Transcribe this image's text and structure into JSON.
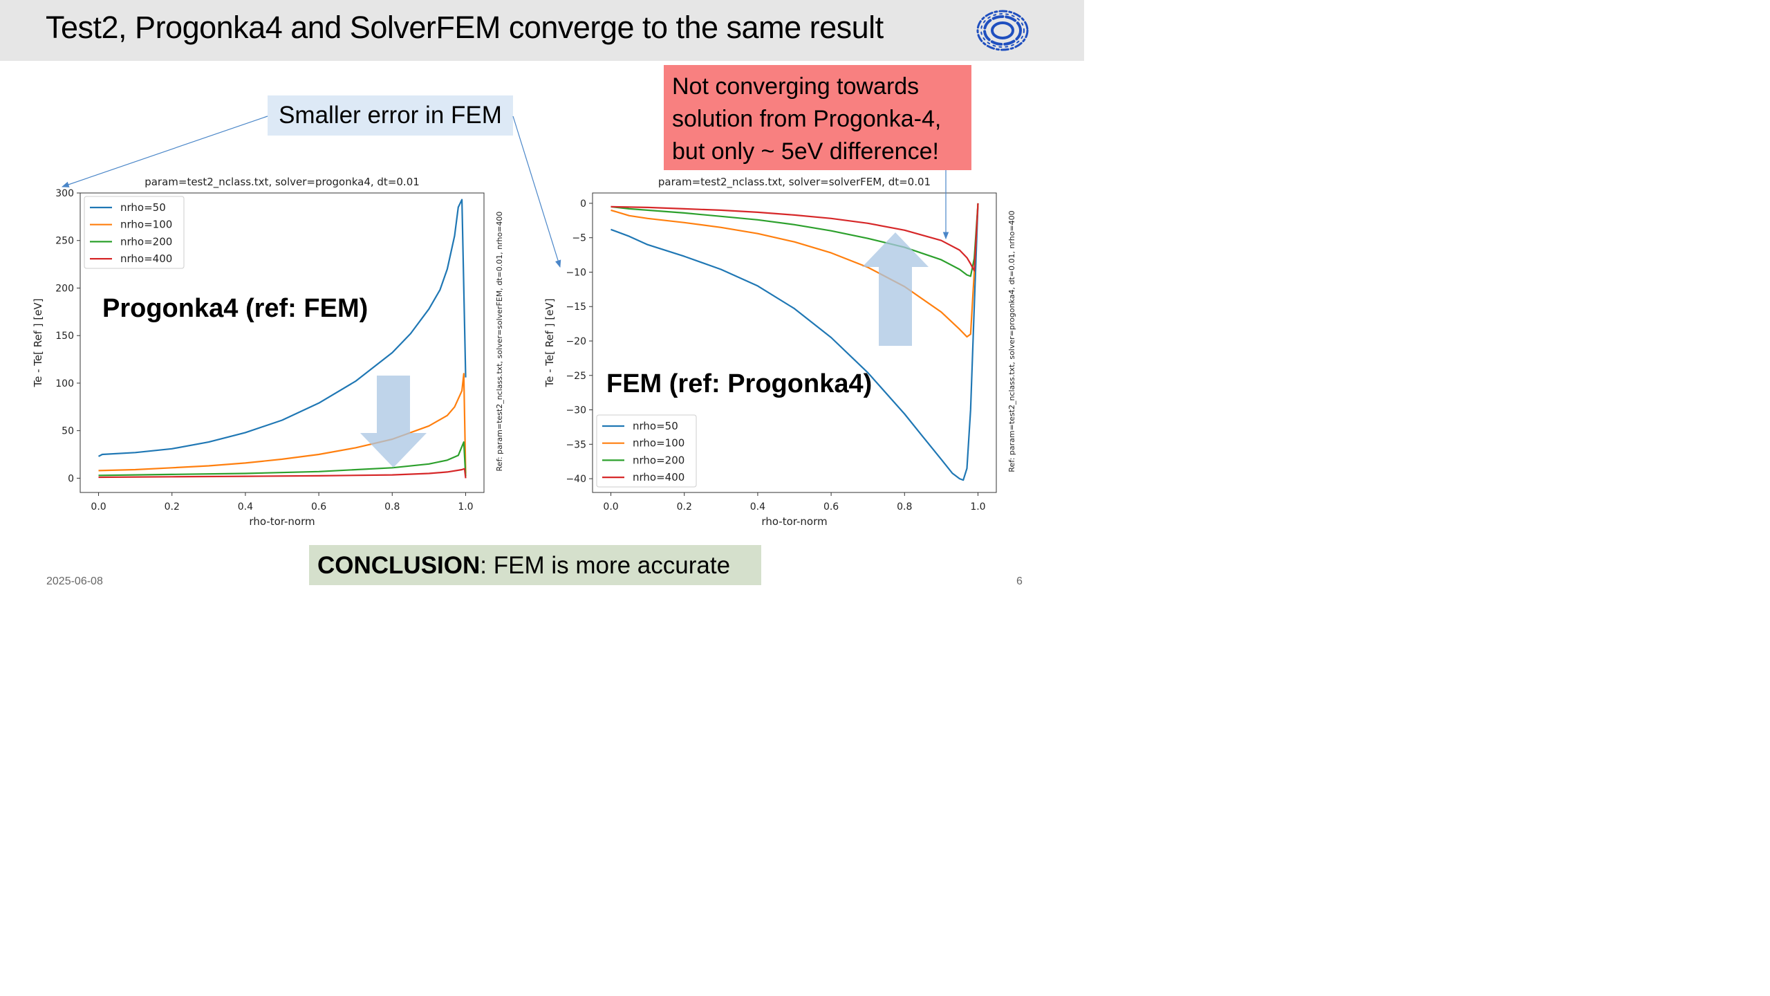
{
  "slide": {
    "title": "Test2, Progonka4 and SolverFEM converge to the same result",
    "date": "2025-06-08",
    "page_number": "6"
  },
  "callouts": {
    "smaller_error": "Smaller error in FEM",
    "not_converging": [
      "Not converging towards",
      "solution from Progonka-4,",
      "but only ~ 5eV difference!"
    ],
    "conclusion_bold": "CONCLUSION",
    "conclusion_text": ": FEM is more accurate"
  },
  "colors": {
    "nrho50": "#1f77b4",
    "nrho100": "#ff7f0e",
    "nrho200": "#2ca02c",
    "nrho400": "#d62728",
    "callout_blue": "#dde9f6",
    "callout_red": "#f88080",
    "conclusion_green": "#d5e0cc",
    "big_arrow": "#a9c5e3"
  },
  "chart_data": [
    {
      "type": "line",
      "title": "param=test2_nclass.txt, solver=progonka4, dt=0.01",
      "xlabel": "rho-tor-norm",
      "ylabel": "Te - Te[ Ref ] [eV]",
      "side_label": "Ref: param=test2_nclass.txt, solver=solverFEM, dt=0.01, nrho=400",
      "annotation": "Progonka4 (ref: FEM)",
      "xlim": [
        -0.05,
        1.05
      ],
      "ylim": [
        -15,
        300
      ],
      "xticks": [
        0.0,
        0.2,
        0.4,
        0.6,
        0.8,
        1.0
      ],
      "xtick_labels": [
        "0.0",
        "0.2",
        "0.4",
        "0.6",
        "0.8",
        "1.0"
      ],
      "yticks": [
        0,
        50,
        100,
        150,
        200,
        250,
        300
      ],
      "ytick_labels": [
        "0",
        "50",
        "100",
        "150",
        "200",
        "250",
        "300"
      ],
      "legend": "upper left",
      "series": [
        {
          "name": "nrho=50",
          "color": "#1f77b4",
          "x": [
            0.0,
            0.01,
            0.1,
            0.2,
            0.3,
            0.4,
            0.5,
            0.6,
            0.7,
            0.8,
            0.85,
            0.9,
            0.93,
            0.95,
            0.97,
            0.98,
            0.99,
            1.0
          ],
          "y": [
            23,
            25,
            27,
            31,
            38,
            48,
            61,
            79,
            102,
            132,
            152,
            178,
            198,
            220,
            255,
            285,
            293,
            106
          ]
        },
        {
          "name": "nrho=100",
          "color": "#ff7f0e",
          "x": [
            0.0,
            0.1,
            0.2,
            0.3,
            0.4,
            0.5,
            0.6,
            0.7,
            0.8,
            0.9,
            0.95,
            0.97,
            0.99,
            0.995,
            1.0
          ],
          "y": [
            8,
            9,
            11,
            13,
            16,
            20,
            25,
            32,
            41,
            55,
            66,
            75,
            92,
            110,
            5
          ]
        },
        {
          "name": "nrho=200",
          "color": "#2ca02c",
          "x": [
            0.0,
            0.2,
            0.4,
            0.6,
            0.8,
            0.9,
            0.95,
            0.98,
            0.995,
            1.0
          ],
          "y": [
            3,
            4,
            5,
            7,
            11,
            15,
            19,
            24,
            38,
            2
          ]
        },
        {
          "name": "nrho=400",
          "color": "#d62728",
          "x": [
            0.0,
            0.2,
            0.4,
            0.6,
            0.8,
            0.9,
            0.95,
            0.99,
            0.997,
            1.0
          ],
          "y": [
            1,
            1.5,
            2,
            2.5,
            3.5,
            5,
            6.5,
            9,
            10,
            0
          ]
        }
      ]
    },
    {
      "type": "line",
      "title": "param=test2_nclass.txt, solver=solverFEM, dt=0.01",
      "xlabel": "rho-tor-norm",
      "ylabel": "Te - Te[ Ref ] [eV]",
      "side_label": "Ref: param=test2_nclass.txt, solver=progonka4, dt=0.01, nrho=400",
      "annotation": "FEM (ref: Progonka4)",
      "xlim": [
        -0.05,
        1.05
      ],
      "ylim": [
        -42,
        1.5
      ],
      "xticks": [
        0.0,
        0.2,
        0.4,
        0.6,
        0.8,
        1.0
      ],
      "xtick_labels": [
        "0.0",
        "0.2",
        "0.4",
        "0.6",
        "0.8",
        "1.0"
      ],
      "yticks": [
        0,
        -5,
        -10,
        -15,
        -20,
        -25,
        -30,
        -35,
        -40
      ],
      "ytick_labels": [
        "0",
        "−5",
        "−10",
        "−15",
        "−20",
        "−25",
        "−30",
        "−35",
        "−40"
      ],
      "legend": "lower left",
      "series": [
        {
          "name": "nrho=50",
          "color": "#1f77b4",
          "x": [
            0.0,
            0.05,
            0.1,
            0.2,
            0.3,
            0.4,
            0.5,
            0.6,
            0.7,
            0.8,
            0.85,
            0.9,
            0.93,
            0.95,
            0.96,
            0.97,
            0.98,
            0.99,
            1.0
          ],
          "y": [
            -3.8,
            -4.8,
            -6.0,
            -7.7,
            -9.6,
            -12,
            -15.3,
            -19.5,
            -24.6,
            -30.6,
            -33.9,
            -37.2,
            -39.2,
            -40.0,
            -40.2,
            -38.5,
            -30.0,
            -15,
            0
          ]
        },
        {
          "name": "nrho=100",
          "color": "#ff7f0e",
          "x": [
            0.0,
            0.05,
            0.1,
            0.2,
            0.3,
            0.4,
            0.5,
            0.6,
            0.7,
            0.8,
            0.9,
            0.95,
            0.97,
            0.98,
            0.99,
            1.0
          ],
          "y": [
            -1.0,
            -1.8,
            -2.2,
            -2.8,
            -3.5,
            -4.4,
            -5.6,
            -7.2,
            -9.3,
            -12.1,
            -15.8,
            -18.3,
            -19.4,
            -19.0,
            -10,
            0
          ]
        },
        {
          "name": "nrho=200",
          "color": "#2ca02c",
          "x": [
            0.0,
            0.05,
            0.1,
            0.2,
            0.3,
            0.4,
            0.5,
            0.6,
            0.7,
            0.8,
            0.9,
            0.95,
            0.97,
            0.98,
            0.99,
            1.0
          ],
          "y": [
            -0.5,
            -0.8,
            -1.0,
            -1.4,
            -1.9,
            -2.4,
            -3.1,
            -4.0,
            -5.1,
            -6.4,
            -8.2,
            -9.6,
            -10.4,
            -10.6,
            -8,
            0
          ]
        },
        {
          "name": "nrho=400",
          "color": "#d62728",
          "x": [
            0.0,
            0.1,
            0.2,
            0.3,
            0.4,
            0.5,
            0.6,
            0.7,
            0.8,
            0.9,
            0.95,
            0.97,
            0.98,
            0.99,
            1.0
          ],
          "y": [
            -0.5,
            -0.6,
            -0.8,
            -1.0,
            -1.3,
            -1.7,
            -2.2,
            -2.9,
            -3.9,
            -5.4,
            -6.8,
            -7.9,
            -8.8,
            -9.8,
            0
          ]
        }
      ]
    }
  ]
}
